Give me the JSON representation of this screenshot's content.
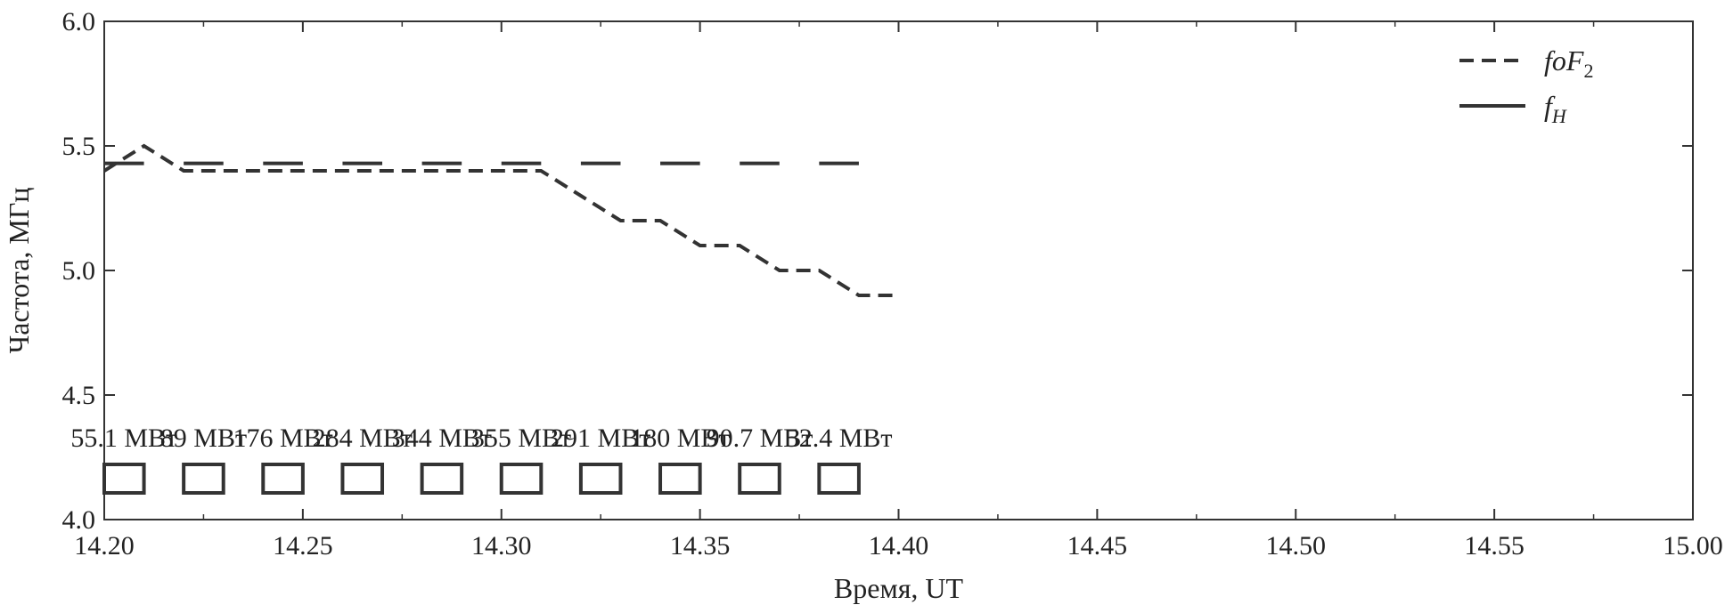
{
  "chart_data": {
    "type": "line",
    "title": "",
    "xlabel": "Время, UT",
    "ylabel": "Частота, МГц",
    "xlim": [
      14.2,
      15.0
    ],
    "ylim": [
      4.0,
      6.0
    ],
    "x_ticks": [
      "14.20",
      "14.25",
      "14.30",
      "14.35",
      "14.40",
      "14.45",
      "14.50",
      "14.55",
      "15.00"
    ],
    "y_ticks": [
      "4.0",
      "4.5",
      "5.0",
      "5.5",
      "6.0"
    ],
    "grid": false,
    "legend_position": "top-right",
    "series": [
      {
        "name": "foF2",
        "legend_label": "foF",
        "legend_subscript": "2",
        "style": "dashed",
        "color": "#333333",
        "points": [
          [
            14.2,
            5.4
          ],
          [
            14.22,
            5.5
          ],
          [
            14.24,
            5.4
          ],
          [
            14.26,
            5.4
          ],
          [
            14.28,
            5.4
          ],
          [
            14.3,
            5.4
          ],
          [
            14.32,
            5.4
          ],
          [
            14.34,
            5.4
          ],
          [
            14.36,
            5.4
          ],
          [
            14.38,
            5.4
          ],
          [
            14.4,
            5.4
          ],
          [
            14.42,
            5.4
          ],
          [
            14.44,
            5.3
          ],
          [
            14.46,
            5.2
          ],
          [
            14.48,
            5.2
          ],
          [
            14.5,
            5.1
          ],
          [
            14.52,
            5.1
          ],
          [
            14.54,
            5.0
          ],
          [
            14.56,
            5.0
          ],
          [
            14.58,
            4.9
          ],
          [
            14.6,
            4.9
          ]
        ]
      },
      {
        "name": "fH",
        "legend_label": "f",
        "legend_subscript": "H",
        "style": "solid-segments",
        "color": "#333333",
        "segments": [
          [
            14.2,
            14.22,
            5.43
          ],
          [
            14.24,
            14.26,
            5.43
          ],
          [
            14.28,
            14.3,
            5.43
          ],
          [
            14.32,
            14.34,
            5.43
          ],
          [
            14.36,
            14.38,
            5.43
          ],
          [
            14.4,
            14.42,
            5.43
          ],
          [
            14.44,
            14.46,
            5.43
          ],
          [
            14.48,
            14.5,
            5.43
          ],
          [
            14.52,
            14.54,
            5.43
          ],
          [
            14.56,
            14.58,
            5.43
          ]
        ]
      }
    ],
    "heating_periods": [
      {
        "start": 14.2,
        "end": 14.22,
        "label": "55.1 МВт"
      },
      {
        "start": 14.24,
        "end": 14.26,
        "label": "89 МВт"
      },
      {
        "start": 14.28,
        "end": 14.3,
        "label": "176 МВт"
      },
      {
        "start": 14.32,
        "end": 14.34,
        "label": "284 МВт"
      },
      {
        "start": 14.36,
        "end": 14.38,
        "label": "344 МВт"
      },
      {
        "start": 14.4,
        "end": 14.42,
        "label": "355 МВт"
      },
      {
        "start": 14.44,
        "end": 14.46,
        "label": "291 МВт"
      },
      {
        "start": 14.48,
        "end": 14.5,
        "label": "180 МВт"
      },
      {
        "start": 14.52,
        "end": 14.54,
        "label": "90.7 МВт"
      },
      {
        "start": 14.56,
        "end": 14.58,
        "label": "52.4 МВт"
      }
    ]
  }
}
